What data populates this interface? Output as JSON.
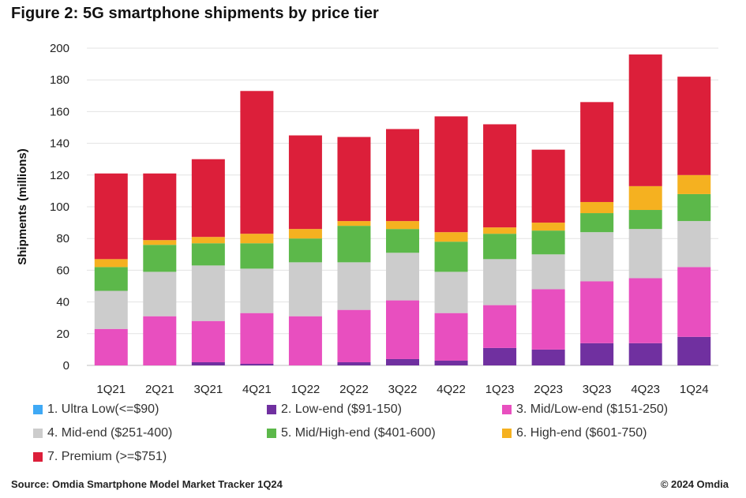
{
  "chart_data": {
    "type": "bar",
    "stacked": true,
    "title": "Figure 2: 5G smartphone shipments by price tier",
    "ylabel": "Shipments (millions)",
    "xlabel": "",
    "ylim": [
      0,
      200
    ],
    "yticks": [
      0,
      20,
      40,
      60,
      80,
      100,
      120,
      140,
      160,
      180,
      200
    ],
    "grid": true,
    "legend_position": "bottom",
    "categories": [
      "1Q21",
      "2Q21",
      "3Q21",
      "4Q21",
      "1Q22",
      "2Q22",
      "3Q22",
      "4Q22",
      "1Q23",
      "2Q23",
      "3Q23",
      "4Q23",
      "1Q24"
    ],
    "series": [
      {
        "name": "1. Ultra Low(<=$90)",
        "color": "#3fa9f5",
        "values": [
          0,
          0,
          0,
          0,
          0,
          0,
          0,
          0,
          0,
          0,
          0,
          0,
          0
        ]
      },
      {
        "name": "2. Low-end ($91-150)",
        "color": "#7030a0",
        "values": [
          0,
          0,
          2,
          1,
          0,
          2,
          4,
          3,
          11,
          10,
          14,
          14,
          18
        ]
      },
      {
        "name": "3. Mid/Low-end ($151-250)",
        "color": "#e84fbf",
        "values": [
          23,
          31,
          26,
          32,
          31,
          33,
          37,
          30,
          27,
          38,
          39,
          41,
          44
        ]
      },
      {
        "name": "4. Mid-end ($251-400)",
        "color": "#cccccc",
        "values": [
          24,
          28,
          35,
          28,
          34,
          30,
          30,
          26,
          29,
          22,
          31,
          31,
          29
        ]
      },
      {
        "name": "5. Mid/High-end ($401-600)",
        "color": "#5cb84a",
        "values": [
          15,
          17,
          14,
          16,
          15,
          23,
          15,
          19,
          16,
          15,
          12,
          12,
          17
        ]
      },
      {
        "name": "6. High-end ($601-750)",
        "color": "#f5b120",
        "values": [
          5,
          3,
          4,
          6,
          6,
          3,
          5,
          6,
          4,
          5,
          7,
          15,
          12
        ]
      },
      {
        "name": "7. Premium (>=$751)",
        "color": "#dc1f3a",
        "values": [
          54,
          42,
          49,
          90,
          59,
          53,
          58,
          73,
          65,
          46,
          63,
          83,
          62
        ]
      }
    ]
  },
  "footer": {
    "source": "Source: Omdia Smartphone Model Market Tracker 1Q24",
    "copyright": "© 2024 Omdia"
  }
}
